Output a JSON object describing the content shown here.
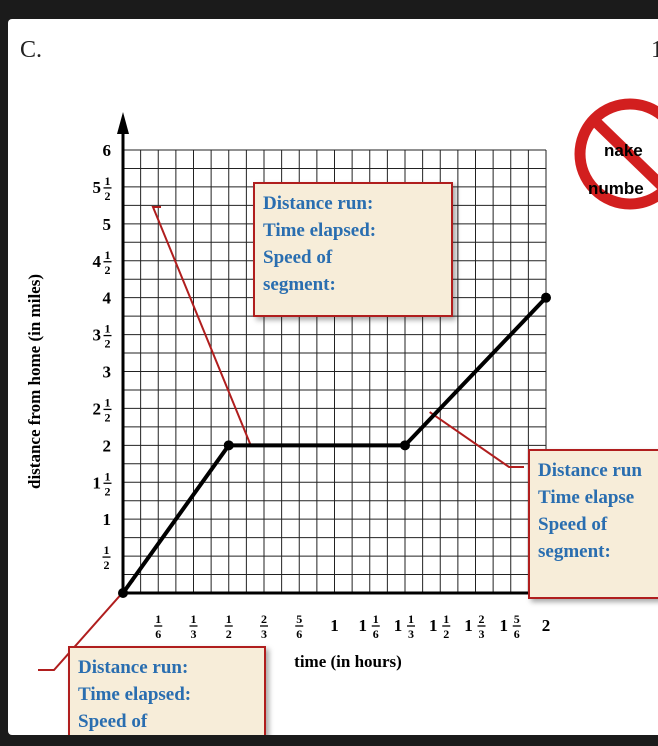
{
  "part_label": "C.",
  "corner_fragment": "1",
  "sign": {
    "line1": "nake",
    "line2": "numbe",
    "ring_color": "#d21f1f"
  },
  "callouts": [
    {
      "lines": [
        "Distance run:",
        "Time elapsed:",
        "Speed of",
        "segment:"
      ]
    },
    {
      "lines": [
        "Distance run",
        "Time elapse",
        "Speed of",
        "segment:"
      ]
    },
    {
      "lines": [
        "Distance run:",
        "Time elapsed:",
        "Speed of"
      ]
    }
  ],
  "colors": {
    "callout_text": "#2a6eb0",
    "callout_border": "#b01e1e",
    "callout_fill": "#f7edd9"
  },
  "chart_data": {
    "type": "line",
    "xlabel": "time (in hours)",
    "ylabel": "distance from home (in miles)",
    "xlim": [
      0,
      2
    ],
    "ylim": [
      0,
      6
    ],
    "x_ticks": [
      {
        "value": 0.1667,
        "label": "1/6"
      },
      {
        "value": 0.3333,
        "label": "1/3"
      },
      {
        "value": 0.5,
        "label": "1/2"
      },
      {
        "value": 0.6667,
        "label": "2/3"
      },
      {
        "value": 0.8333,
        "label": "5/6"
      },
      {
        "value": 1,
        "label": "1"
      },
      {
        "value": 1.1667,
        "label": "1 1/6"
      },
      {
        "value": 1.3333,
        "label": "1 1/3"
      },
      {
        "value": 1.5,
        "label": "1 1/2"
      },
      {
        "value": 1.6667,
        "label": "1 2/3"
      },
      {
        "value": 1.8333,
        "label": "1 5/6"
      },
      {
        "value": 2,
        "label": "2"
      }
    ],
    "y_ticks": [
      {
        "value": 0.5,
        "label": "1/2"
      },
      {
        "value": 1,
        "label": "1"
      },
      {
        "value": 1.5,
        "label": "1 1/2"
      },
      {
        "value": 2,
        "label": "2"
      },
      {
        "value": 2.5,
        "label": "2 1/2"
      },
      {
        "value": 3,
        "label": "3"
      },
      {
        "value": 3.5,
        "label": "3 1/2"
      },
      {
        "value": 4,
        "label": "4"
      },
      {
        "value": 4.5,
        "label": "4 1/2"
      },
      {
        "value": 5,
        "label": "5"
      },
      {
        "value": 5.5,
        "label": "5 1/2"
      },
      {
        "value": 6,
        "label": "6"
      }
    ],
    "grid": true,
    "series": [
      {
        "points": [
          [
            0,
            0
          ],
          [
            0.5,
            2
          ],
          [
            1.3333,
            2
          ],
          [
            2,
            4
          ]
        ]
      }
    ]
  }
}
